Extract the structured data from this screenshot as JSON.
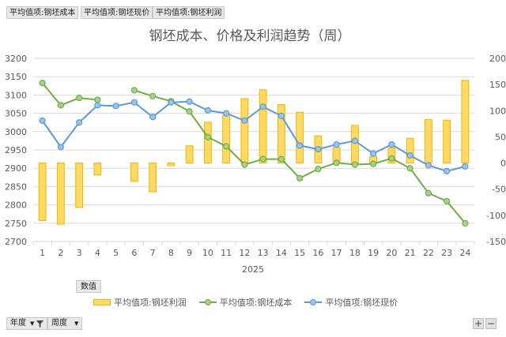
{
  "field_buttons": [
    "平均值项:钢坯成本",
    "平均值项:钢坯现价",
    "平均值项:钢坯利润"
  ],
  "values_tag": "数值",
  "bottom_filters": {
    "year": "年度",
    "week": "周度"
  },
  "zoom": {
    "plus": "+",
    "minus": "−"
  },
  "icons": {
    "filter": "filter-icon",
    "dropdown": "chevron-down-icon"
  },
  "colors": {
    "bar_fill": "#ffd966",
    "bar_edge": "#f5b400",
    "cost": "#70ad47",
    "price": "#5b9bd5"
  },
  "chart_data": {
    "type": "bar+line",
    "title": "钢坯成本、价格及利润趋势（周）",
    "year": "2025",
    "categories": [
      "1",
      "2",
      "3",
      "4",
      "5",
      "6",
      "7",
      "8",
      "9",
      "10",
      "11",
      "12",
      "13",
      "14",
      "15",
      "16",
      "17",
      "18",
      "19",
      "20",
      "21",
      "22",
      "23",
      "24"
    ],
    "left_axis": {
      "min": 2700,
      "max": 3200,
      "step": 50
    },
    "right_axis": {
      "min": -150,
      "max": 200,
      "step": 50
    },
    "series": [
      {
        "name": "平均值项:钢坯利润",
        "kind": "bar",
        "axis": "right",
        "values": [
          -110,
          -117,
          -85,
          -23,
          null,
          -35,
          -55,
          -5,
          33,
          78,
          92,
          123,
          140,
          112,
          97,
          52,
          30,
          72,
          13,
          29,
          47,
          83,
          82,
          158
        ]
      },
      {
        "name": "平均值项:钢坯成本",
        "kind": "line",
        "axis": "left",
        "values": [
          3133,
          3072,
          3092,
          3087,
          null,
          3113,
          3097,
          3083,
          3055,
          2985,
          2960,
          2910,
          2925,
          2925,
          2873,
          2898,
          2915,
          2910,
          2912,
          2927,
          2900,
          2832,
          2810,
          2750
        ]
      },
      {
        "name": "平均值项:钢坯现价",
        "kind": "line",
        "axis": "left",
        "values": [
          3030,
          2958,
          3025,
          3072,
          3070,
          3080,
          3040,
          3080,
          3082,
          3058,
          3050,
          3030,
          3068,
          3043,
          2962,
          2952,
          2965,
          2975,
          2940,
          2965,
          2935,
          2908,
          2892,
          2905
        ]
      }
    ],
    "legend": [
      "平均值项:钢坯利润",
      "平均值项:钢坯成本",
      "平均值项:钢坯现价"
    ],
    "legend_position": "bottom"
  }
}
